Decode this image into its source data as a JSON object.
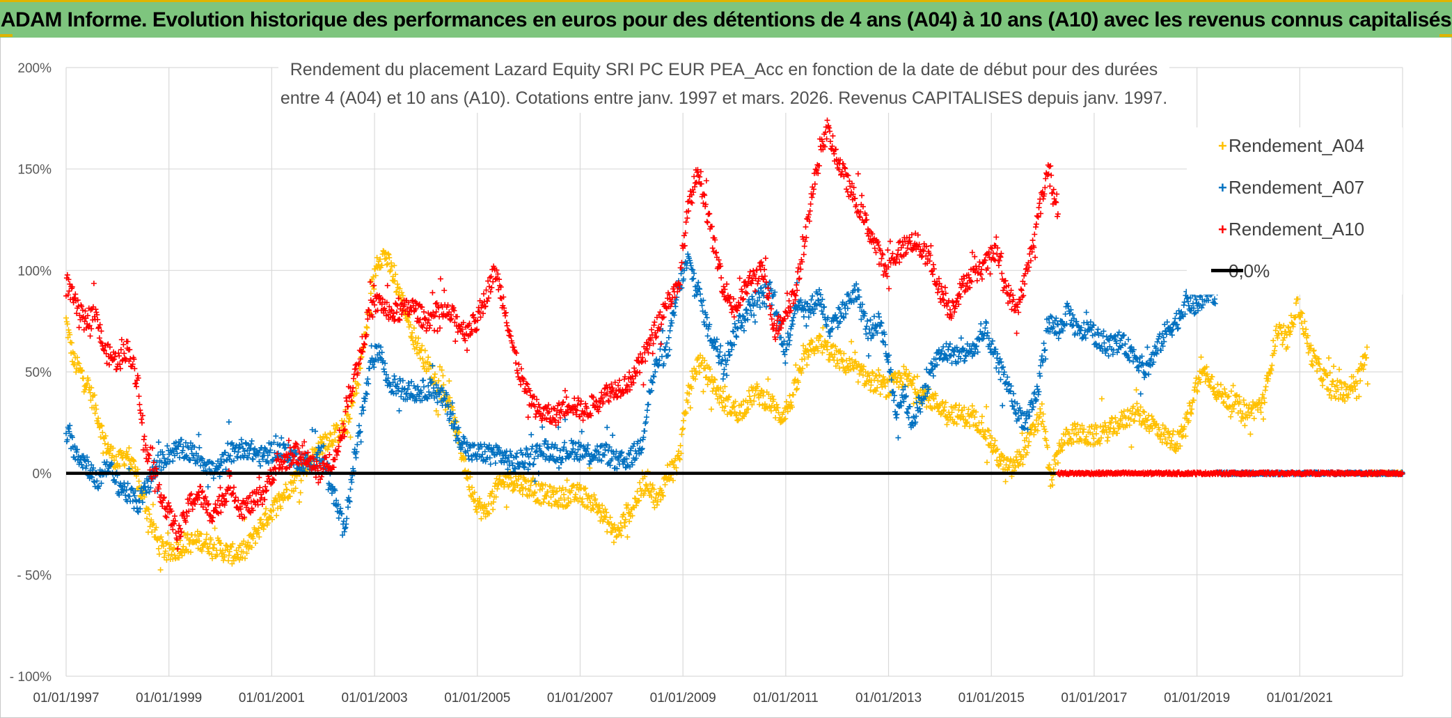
{
  "banner": {
    "title": "ADAM Informe. Evolution historique des performances en euros pour des détentions de 4 ans (A04) à 10 ans (A10) avec les revenus connus capitalisés",
    "color": "#7ec57e",
    "accent": "#e0b400"
  },
  "chart_data": {
    "type": "scatter",
    "title_line1": "Rendement du placement Lazard Equity SRI PC EUR PEA_Acc en fonction de la date de début pour des durées",
    "title_line2": "entre 4 (A04) et 10 ans (A10). Cotations entre janv. 1997 et mars. 2026. Revenus CAPITALISES depuis janv. 1997.",
    "x_axis": {
      "type": "date",
      "range": [
        "1997-01-01",
        "2023-01-01"
      ],
      "tick_labels": [
        "01/01/1997",
        "01/01/1999",
        "01/01/2001",
        "01/01/2003",
        "01/01/2005",
        "01/01/2007",
        "01/01/2009",
        "01/01/2011",
        "01/01/2013",
        "01/01/2015",
        "01/01/2017",
        "01/01/2019",
        "01/01/2021"
      ],
      "grid": true
    },
    "y_axis": {
      "range": [
        -100,
        200
      ],
      "unit": "%",
      "tick_values": [
        200,
        150,
        100,
        50,
        0,
        -50,
        -100
      ],
      "tick_labels": [
        "200%",
        "150%",
        "100%",
        "50%",
        "0%",
        "- 50%",
        "- 100%"
      ],
      "grid": true
    },
    "legend": {
      "position": "right"
    },
    "series": [
      {
        "name": "Rendement_A04",
        "color": "#ffc000",
        "marker": "plus",
        "x_end": 2022.33,
        "keypoints": [
          [
            1997.0,
            75
          ],
          [
            1997.15,
            55
          ],
          [
            1997.4,
            45
          ],
          [
            1997.6,
            30
          ],
          [
            1997.75,
            15
          ],
          [
            1998.0,
            5
          ],
          [
            1998.2,
            10
          ],
          [
            1998.4,
            -5
          ],
          [
            1998.6,
            -20
          ],
          [
            1998.8,
            -35
          ],
          [
            1999.0,
            -40
          ],
          [
            1999.3,
            -35
          ],
          [
            1999.6,
            -33
          ],
          [
            1999.9,
            -36
          ],
          [
            2000.2,
            -40
          ],
          [
            2000.5,
            -38
          ],
          [
            2000.8,
            -25
          ],
          [
            2001.1,
            -15
          ],
          [
            2001.4,
            -5
          ],
          [
            2001.7,
            5
          ],
          [
            2002.0,
            15
          ],
          [
            2002.3,
            20
          ],
          [
            2002.5,
            25
          ],
          [
            2002.7,
            50
          ],
          [
            2002.9,
            80
          ],
          [
            2003.05,
            105
          ],
          [
            2003.2,
            108
          ],
          [
            2003.4,
            95
          ],
          [
            2003.6,
            80
          ],
          [
            2003.8,
            65
          ],
          [
            2004.0,
            55
          ],
          [
            2004.2,
            45
          ],
          [
            2004.4,
            38
          ],
          [
            2004.55,
            25
          ],
          [
            2004.7,
            10
          ],
          [
            2004.85,
            -5
          ],
          [
            2005.0,
            -15
          ],
          [
            2005.15,
            -20
          ],
          [
            2005.35,
            -8
          ],
          [
            2005.6,
            -3
          ],
          [
            2005.85,
            -5
          ],
          [
            2006.2,
            -10
          ],
          [
            2006.6,
            -12
          ],
          [
            2007.0,
            -10
          ],
          [
            2007.3,
            -15
          ],
          [
            2007.55,
            -25
          ],
          [
            2007.75,
            -30
          ],
          [
            2007.9,
            -20
          ],
          [
            2008.0,
            -18
          ],
          [
            2008.15,
            -10
          ],
          [
            2008.3,
            -3
          ],
          [
            2008.5,
            -15
          ],
          [
            2008.7,
            0
          ],
          [
            2008.9,
            5
          ],
          [
            2009.0,
            20
          ],
          [
            2009.1,
            40
          ],
          [
            2009.3,
            55
          ],
          [
            2009.5,
            48
          ],
          [
            2009.8,
            35
          ],
          [
            2010.1,
            30
          ],
          [
            2010.4,
            40
          ],
          [
            2010.7,
            35
          ],
          [
            2010.9,
            28
          ],
          [
            2011.1,
            35
          ],
          [
            2011.35,
            55
          ],
          [
            2011.6,
            65
          ],
          [
            2011.85,
            60
          ],
          [
            2012.1,
            55
          ],
          [
            2012.4,
            50
          ],
          [
            2012.7,
            45
          ],
          [
            2013.0,
            42
          ],
          [
            2013.3,
            48
          ],
          [
            2013.6,
            40
          ],
          [
            2013.9,
            35
          ],
          [
            2014.2,
            30
          ],
          [
            2014.5,
            28
          ],
          [
            2014.8,
            25
          ],
          [
            2015.0,
            15
          ],
          [
            2015.2,
            5
          ],
          [
            2015.4,
            2
          ],
          [
            2015.6,
            10
          ],
          [
            2015.8,
            20
          ],
          [
            2016.0,
            30
          ],
          [
            2016.15,
            -5
          ],
          [
            2016.35,
            15
          ],
          [
            2016.6,
            20
          ],
          [
            2016.9,
            18
          ],
          [
            2017.2,
            20
          ],
          [
            2017.5,
            25
          ],
          [
            2017.8,
            30
          ],
          [
            2018.1,
            25
          ],
          [
            2018.4,
            18
          ],
          [
            2018.65,
            15
          ],
          [
            2018.85,
            30
          ],
          [
            2019.0,
            45
          ],
          [
            2019.2,
            50
          ],
          [
            2019.4,
            40
          ],
          [
            2019.7,
            35
          ],
          [
            2020.0,
            30
          ],
          [
            2020.3,
            35
          ],
          [
            2020.55,
            70
          ],
          [
            2020.75,
            65
          ],
          [
            2020.95,
            85
          ],
          [
            2021.2,
            60
          ],
          [
            2021.4,
            50
          ],
          [
            2021.6,
            42
          ],
          [
            2021.85,
            40
          ],
          [
            2022.1,
            45
          ],
          [
            2022.33,
            60
          ]
        ]
      },
      {
        "name": "Rendement_A07",
        "color": "#0070c0",
        "marker": "plus",
        "x_end": 2019.4,
        "keypoints": [
          [
            1997.0,
            20
          ],
          [
            1997.2,
            10
          ],
          [
            1997.4,
            5
          ],
          [
            1997.6,
            -5
          ],
          [
            1997.8,
            5
          ],
          [
            1998.0,
            -5
          ],
          [
            1998.2,
            -10
          ],
          [
            1998.4,
            -15
          ],
          [
            1998.6,
            -5
          ],
          [
            1998.8,
            5
          ],
          [
            1999.0,
            10
          ],
          [
            1999.3,
            12
          ],
          [
            1999.6,
            8
          ],
          [
            1999.9,
            0
          ],
          [
            2000.2,
            10
          ],
          [
            2000.5,
            13
          ],
          [
            2000.8,
            8
          ],
          [
            2001.1,
            12
          ],
          [
            2001.4,
            8
          ],
          [
            2001.7,
            5
          ],
          [
            2002.0,
            10
          ],
          [
            2002.2,
            -10
          ],
          [
            2002.4,
            -28
          ],
          [
            2002.6,
            5
          ],
          [
            2002.8,
            35
          ],
          [
            2002.95,
            55
          ],
          [
            2003.1,
            62
          ],
          [
            2003.25,
            45
          ],
          [
            2003.5,
            42
          ],
          [
            2003.8,
            40
          ],
          [
            2004.1,
            42
          ],
          [
            2004.4,
            35
          ],
          [
            2004.6,
            20
          ],
          [
            2004.85,
            10
          ],
          [
            2005.1,
            10
          ],
          [
            2005.4,
            10
          ],
          [
            2005.7,
            5
          ],
          [
            2006.0,
            8
          ],
          [
            2006.3,
            12
          ],
          [
            2006.6,
            10
          ],
          [
            2006.9,
            12
          ],
          [
            2007.2,
            10
          ],
          [
            2007.5,
            10
          ],
          [
            2007.75,
            5
          ],
          [
            2008.0,
            8
          ],
          [
            2008.2,
            15
          ],
          [
            2008.35,
            40
          ],
          [
            2008.5,
            55
          ],
          [
            2008.7,
            60
          ],
          [
            2008.9,
            90
          ],
          [
            2009.1,
            105
          ],
          [
            2009.3,
            90
          ],
          [
            2009.5,
            70
          ],
          [
            2009.8,
            55
          ],
          [
            2010.1,
            75
          ],
          [
            2010.4,
            85
          ],
          [
            2010.7,
            90
          ],
          [
            2011.0,
            60
          ],
          [
            2011.2,
            85
          ],
          [
            2011.45,
            80
          ],
          [
            2011.65,
            88
          ],
          [
            2011.85,
            70
          ],
          [
            2012.1,
            80
          ],
          [
            2012.35,
            90
          ],
          [
            2012.6,
            70
          ],
          [
            2012.85,
            75
          ],
          [
            2013.0,
            55
          ],
          [
            2013.15,
            30
          ],
          [
            2013.3,
            40
          ],
          [
            2013.45,
            25
          ],
          [
            2013.7,
            40
          ],
          [
            2013.9,
            55
          ],
          [
            2014.1,
            60
          ],
          [
            2014.4,
            58
          ],
          [
            2014.7,
            62
          ],
          [
            2014.9,
            70
          ],
          [
            2015.1,
            55
          ],
          [
            2015.3,
            45
          ],
          [
            2015.5,
            30
          ],
          [
            2015.7,
            25
          ],
          [
            2015.9,
            40
          ],
          [
            2016.1,
            75
          ],
          [
            2016.3,
            70
          ],
          [
            2016.5,
            80
          ],
          [
            2016.7,
            68
          ],
          [
            2016.9,
            72
          ],
          [
            2017.2,
            62
          ],
          [
            2017.5,
            65
          ],
          [
            2017.8,
            58
          ],
          [
            2018.0,
            50
          ],
          [
            2018.2,
            60
          ],
          [
            2018.4,
            70
          ],
          [
            2018.6,
            75
          ],
          [
            2018.8,
            85
          ],
          [
            2019.0,
            82
          ],
          [
            2019.2,
            90
          ],
          [
            2019.4,
            88
          ]
        ]
      },
      {
        "name": "Rendement_A10",
        "color": "#ff0000",
        "marker": "plus",
        "x_end": 2016.3,
        "keypoints": [
          [
            1997.0,
            95
          ],
          [
            1997.15,
            85
          ],
          [
            1997.35,
            75
          ],
          [
            1997.55,
            80
          ],
          [
            1997.75,
            60
          ],
          [
            1998.0,
            55
          ],
          [
            1998.2,
            62
          ],
          [
            1998.4,
            45
          ],
          [
            1998.55,
            10
          ],
          [
            1998.7,
            0
          ],
          [
            1998.85,
            -10
          ],
          [
            1999.0,
            -20
          ],
          [
            1999.2,
            -30
          ],
          [
            1999.4,
            -15
          ],
          [
            1999.6,
            -10
          ],
          [
            1999.8,
            -20
          ],
          [
            2000.0,
            -15
          ],
          [
            2000.2,
            -5
          ],
          [
            2000.4,
            -18
          ],
          [
            2000.6,
            -15
          ],
          [
            2000.85,
            -10
          ],
          [
            2001.0,
            0
          ],
          [
            2001.2,
            5
          ],
          [
            2001.45,
            10
          ],
          [
            2001.7,
            8
          ],
          [
            2001.9,
            0
          ],
          [
            2002.1,
            5
          ],
          [
            2002.3,
            10
          ],
          [
            2002.5,
            40
          ],
          [
            2002.7,
            55
          ],
          [
            2002.9,
            80
          ],
          [
            2003.1,
            85
          ],
          [
            2003.3,
            78
          ],
          [
            2003.5,
            80
          ],
          [
            2003.75,
            82
          ],
          [
            2004.0,
            75
          ],
          [
            2004.25,
            80
          ],
          [
            2004.5,
            78
          ],
          [
            2004.75,
            70
          ],
          [
            2005.0,
            75
          ],
          [
            2005.2,
            90
          ],
          [
            2005.35,
            100
          ],
          [
            2005.55,
            80
          ],
          [
            2005.75,
            55
          ],
          [
            2005.95,
            40
          ],
          [
            2006.2,
            30
          ],
          [
            2006.5,
            28
          ],
          [
            2006.8,
            35
          ],
          [
            2007.1,
            30
          ],
          [
            2007.4,
            38
          ],
          [
            2007.7,
            42
          ],
          [
            2007.95,
            45
          ],
          [
            2008.2,
            55
          ],
          [
            2008.45,
            70
          ],
          [
            2008.7,
            85
          ],
          [
            2008.9,
            90
          ],
          [
            2009.1,
            130
          ],
          [
            2009.3,
            150
          ],
          [
            2009.5,
            125
          ],
          [
            2009.75,
            95
          ],
          [
            2010.0,
            80
          ],
          [
            2010.3,
            95
          ],
          [
            2010.55,
            100
          ],
          [
            2010.8,
            70
          ],
          [
            2011.0,
            80
          ],
          [
            2011.2,
            90
          ],
          [
            2011.4,
            120
          ],
          [
            2011.6,
            150
          ],
          [
            2011.8,
            170
          ],
          [
            2012.0,
            155
          ],
          [
            2012.25,
            140
          ],
          [
            2012.45,
            130
          ],
          [
            2012.7,
            115
          ],
          [
            2012.95,
            100
          ],
          [
            2013.2,
            110
          ],
          [
            2013.5,
            115
          ],
          [
            2013.8,
            105
          ],
          [
            2014.0,
            90
          ],
          [
            2014.2,
            80
          ],
          [
            2014.5,
            95
          ],
          [
            2014.8,
            100
          ],
          [
            2015.1,
            110
          ],
          [
            2015.3,
            90
          ],
          [
            2015.5,
            80
          ],
          [
            2015.7,
            100
          ],
          [
            2015.9,
            125
          ],
          [
            2016.1,
            150
          ],
          [
            2016.3,
            130
          ]
        ]
      },
      {
        "name": "0,0%",
        "color": "#000000",
        "marker": "line",
        "value": 0
      }
    ],
    "zero_fill": {
      "A10_from": 2016.3,
      "A07_from": 2019.4,
      "A04_from": 2022.33,
      "to": 2023.0
    }
  }
}
